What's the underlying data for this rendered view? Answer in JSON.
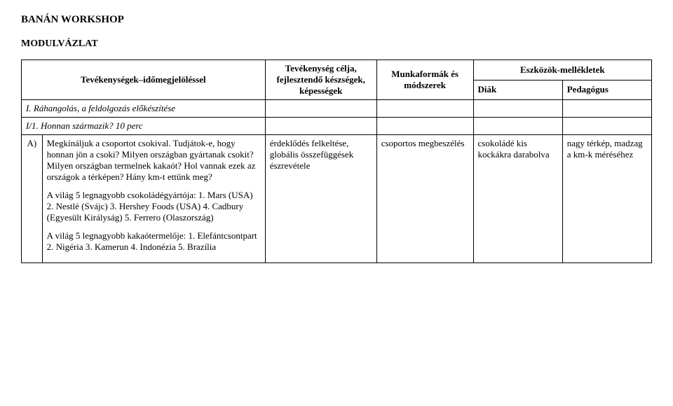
{
  "page": {
    "title": "BANÁN WORKSHOP",
    "subtitle": "MODULVÁZLAT"
  },
  "headers": {
    "activities": "Tevékenységek–időmegjelöléssel",
    "goal": "Tevékenység célja, fejlesztendő készségek, képességek",
    "methods": "Munkaformák és módszerek",
    "tools": "Eszközök-mellékletek",
    "student": "Diák",
    "teacher": "Pedagógus"
  },
  "section": {
    "s1": "I. Ráhangolás, a feldolgozás előkészítése",
    "s1_1": "I/1. Honnan származik? 10 perc",
    "letter": "A)"
  },
  "row1": {
    "activity_p1": "Megkínáljuk a csoportot csokival. Tudjátok-e, hogy honnan jön a csoki? Milyen országban gyártanak csokit? Milyen országban termelnek kakaót? Hol vannak ezek az országok a térképen? Hány km-t ettünk meg?",
    "activity_p2": "A világ 5 legnagyobb csokoládégyártója: 1. Mars (USA) 2. Nestlé (Svájc) 3. Hershey Foods (USA) 4. Cadbury (Egyesült Királyság) 5. Ferrero (Olaszország)",
    "activity_p3": "A világ 5 legnagyobb kakaótermelője: 1. Elefántcsontpart 2. Nigéria 3. Kamerun 4. Indonézia 5. Brazília",
    "goal": "érdeklődés felkeltése, globális összefüggések észrevétele",
    "method": "csoportos megbeszélés",
    "tool_student": "csokoládé kis kockákra darabolva",
    "tool_teacher": "nagy térkép, madzag a km-k méréséhez"
  }
}
